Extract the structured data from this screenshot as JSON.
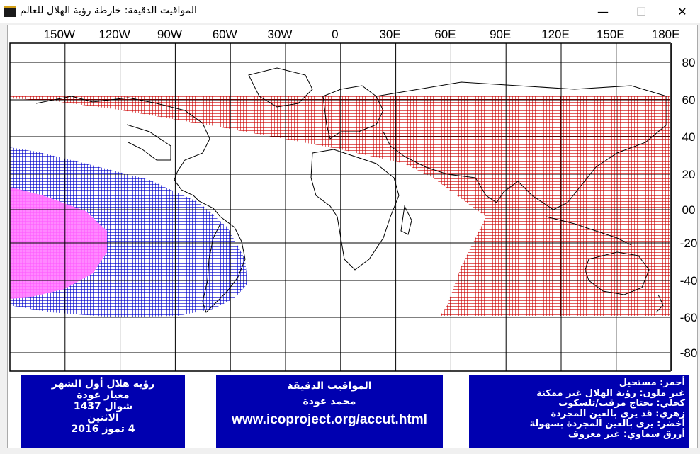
{
  "window": {
    "title": "المواقيت الدقيقة: خارطة رؤية الهلال للعالم",
    "minimize_glyph": "—",
    "maximize_glyph": "☐",
    "close_glyph": "✕"
  },
  "map": {
    "x_ticks": [
      "150W",
      "120W",
      "90W",
      "60W",
      "30W",
      "0",
      "30E",
      "60E",
      "90E",
      "120E",
      "150E",
      "180E"
    ],
    "y_ticks": [
      "80",
      "60",
      "40",
      "20",
      "00",
      "-20",
      "-40",
      "-60",
      "-80"
    ],
    "colors": {
      "red": "#cc0000",
      "blue": "#0000cc",
      "magenta": "#ff66ff",
      "grid": "#000000"
    }
  },
  "info_left": {
    "line1": "رؤية هلال أول الشهر",
    "line2": "معيار عودة",
    "line3": "شوال 1437",
    "line4": "الاثنين",
    "line5": "4 تموز 2016"
  },
  "info_mid": {
    "line1": "المواقيت الدقيقة",
    "line2": "محمد عودة",
    "url": "www.icoproject.org/accut.html"
  },
  "legend": {
    "red": "أحمر: مستحيل",
    "none": "غير ملون: رؤية الهلال غير ممكنة",
    "blue": "كحلي: يحتاج مرقب/تلسكوب",
    "pink": "زهري: قد يرى بالعين المجردة",
    "green": "أخضر: يرى بالعين المجردة بسهولة",
    "skyblue": "أزرق سماوي: غير معروف"
  }
}
